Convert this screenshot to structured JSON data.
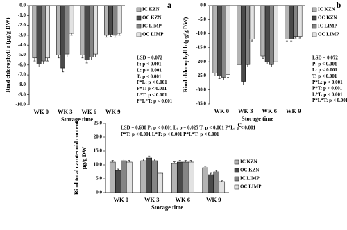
{
  "chart_data": [
    {
      "type": "bar",
      "panel": "a",
      "y_label": [
        "Rind chlorophyll a (µg/g DW)"
      ],
      "x_label": "Storage time",
      "categories": [
        "WK 0",
        "WK 3",
        "WK 6",
        "WK 9"
      ],
      "series": [
        {
          "name": "IC KZN",
          "color": "#b4b4b4",
          "values": [
            -5.3,
            -5.0,
            -5.0,
            -3.0
          ],
          "errors": [
            0.3,
            0.3,
            0.3,
            0.2
          ]
        },
        {
          "name": "OC KZN",
          "color": "#4a4a4a",
          "values": [
            -5.9,
            -6.3,
            -5.5,
            -2.9
          ],
          "errors": [
            0.3,
            0.4,
            0.3,
            0.2
          ]
        },
        {
          "name": "IC LIMP",
          "color": "#858585",
          "values": [
            -5.6,
            -4.9,
            -5.2,
            -3.0
          ],
          "errors": [
            0.3,
            0.3,
            0.3,
            0.2
          ]
        },
        {
          "name": "OC LIMP",
          "color": "#e2e2e2",
          "values": [
            -5.3,
            -2.8,
            -4.9,
            -2.8
          ],
          "errors": [
            0.3,
            0.2,
            0.3,
            0.2
          ]
        }
      ],
      "ylim": [
        -10,
        0
      ],
      "yticks": [
        {
          "value": 0,
          "label": "0.0"
        },
        {
          "value": -1,
          "label": "-1.0"
        },
        {
          "value": -2,
          "label": "-2.0"
        },
        {
          "value": -3,
          "label": "-3.0"
        },
        {
          "value": -4,
          "label": "-4.0"
        },
        {
          "value": -5,
          "label": "-5.0"
        },
        {
          "value": -6,
          "label": "-6.0"
        },
        {
          "value": -7,
          "label": "-7.0"
        },
        {
          "value": -8,
          "label": "-8.0"
        },
        {
          "value": -9,
          "label": "-9.0"
        },
        {
          "value": -10,
          "label": "-10.0"
        }
      ],
      "stats": [
        "LSD = 0.072",
        "P: p < 0.001",
        "L: p < 0.001",
        "T: p < 0.001",
        "P*L: p < 0.001",
        "P*T: p < 0.001",
        "L*T: p < 0.001",
        "P*L*T: p < 0.001"
      ]
    },
    {
      "type": "bar",
      "panel": "b",
      "y_label": [
        "Rind chlorophyll b (µg/g DW)"
      ],
      "x_label": "Storage time",
      "categories": [
        "WK 0",
        "WK 3",
        "WK 6",
        "WK 9"
      ],
      "series": [
        {
          "name": "IC KZN",
          "color": "#b4b4b4",
          "values": [
            -24,
            -21,
            -18,
            -12
          ],
          "errors": [
            1.0,
            0.8,
            0.8,
            0.6
          ]
        },
        {
          "name": "OC KZN",
          "color": "#4a4a4a",
          "values": [
            -25,
            -27,
            -20,
            -12
          ],
          "errors": [
            1.0,
            1.2,
            0.8,
            0.6
          ]
        },
        {
          "name": "IC LIMP",
          "color": "#858585",
          "values": [
            -25.5,
            -21,
            -21,
            -11
          ],
          "errors": [
            1.0,
            0.8,
            0.8,
            0.6
          ]
        },
        {
          "name": "OC LIMP",
          "color": "#e2e2e2",
          "values": [
            -24.5,
            -12,
            -20,
            -11
          ],
          "errors": [
            1.0,
            0.6,
            0.8,
            0.6
          ]
        }
      ],
      "ylim": [
        -35,
        0
      ],
      "yticks": [
        {
          "value": 0,
          "label": "0.0"
        },
        {
          "value": -5,
          "label": "-5.0"
        },
        {
          "value": -10,
          "label": "-10.0"
        },
        {
          "value": -15,
          "label": "-15.0"
        },
        {
          "value": -20,
          "label": "-20.0"
        },
        {
          "value": -25,
          "label": "-25.0"
        },
        {
          "value": -30,
          "label": "-30.0"
        },
        {
          "value": -35,
          "label": "-35.0"
        }
      ],
      "stats": [
        "LSD = 0.072",
        "P: p < 0.001",
        "L: p < 0.001",
        "T: p < 0.001",
        "P*L: p < 0.001",
        "P*T: p < 0.001",
        "L*T: p < 0.001",
        "P*L*T: p < 0.001"
      ]
    },
    {
      "type": "bar",
      "panel": "c",
      "y_label": [
        "Rind total carotenoid content",
        "μg/g DW"
      ],
      "x_label": "Storage time",
      "categories": [
        "WK 0",
        "WK 3",
        "WK 6",
        "WK 9"
      ],
      "series": [
        {
          "name": "IC KZN",
          "color": "#b4b4b4",
          "values": [
            11,
            11.5,
            10.5,
            9
          ],
          "errors": [
            0.6,
            0.6,
            0.6,
            0.5
          ]
        },
        {
          "name": "OC KZN",
          "color": "#4a4a4a",
          "values": [
            8,
            12.5,
            11,
            6.5
          ],
          "errors": [
            0.5,
            0.7,
            0.6,
            0.5
          ]
        },
        {
          "name": "IC LIMP",
          "color": "#858585",
          "values": [
            11.5,
            11.5,
            11,
            7.5
          ],
          "errors": [
            0.6,
            0.6,
            0.6,
            0.5
          ]
        },
        {
          "name": "OC LIMP",
          "color": "#e2e2e2",
          "values": [
            11,
            7,
            11,
            4
          ],
          "errors": [
            0.6,
            0.4,
            0.6,
            0.3
          ]
        }
      ],
      "ylim": [
        0,
        25
      ],
      "yticks": [
        {
          "value": 0,
          "label": "0.0"
        },
        {
          "value": 5,
          "label": "5.0"
        },
        {
          "value": 10,
          "label": "10.0"
        },
        {
          "value": 15,
          "label": "15.0"
        },
        {
          "value": 20,
          "label": "20.0"
        },
        {
          "value": 25,
          "label": "25.0"
        }
      ],
      "stats": [
        "LSD = 0.630 P: p < 0.001 L: p = 0.025 T: p < 0.001 P*L: p < 0.001",
        "P*T: p < 0.001 L*T: p < 0.001 P*L*T: p < 0.001"
      ]
    }
  ]
}
